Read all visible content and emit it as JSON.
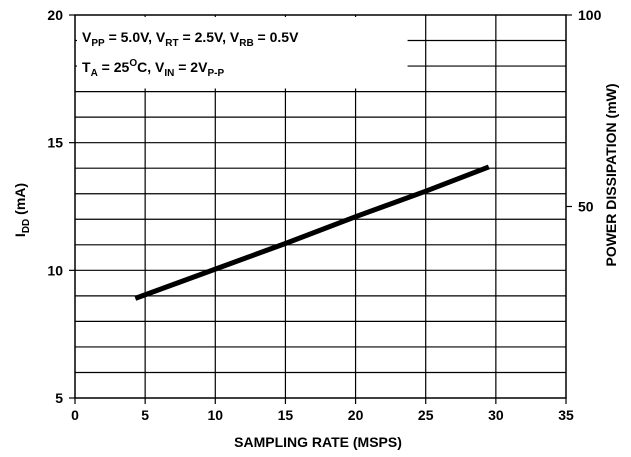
{
  "chart_data": {
    "type": "line",
    "xlabel": "SAMPLING RATE (MSPS)",
    "ylabel": {
      "main": "I",
      "sub": "DD",
      "rest": " (mA)"
    },
    "y2label": "POWER DISSIPATION (mW)",
    "xlim": [
      0,
      35
    ],
    "ylim": [
      5,
      20
    ],
    "y2lim": [
      0,
      100
    ],
    "x_ticks": [
      "0",
      "5",
      "10",
      "15",
      "20",
      "25",
      "30",
      "35"
    ],
    "y_ticks": [
      "5",
      "10",
      "15",
      "20"
    ],
    "y2_ticks": [
      "50",
      "100"
    ],
    "grid": true,
    "annotation": {
      "line1": [
        {
          "t": "V"
        },
        {
          "t": "PP",
          "sub": true
        },
        {
          "t": " = 5.0V, V"
        },
        {
          "t": "RT",
          "sub": true
        },
        {
          "t": " = 2.5V, V"
        },
        {
          "t": "RB",
          "sub": true
        },
        {
          "t": " = 0.5V"
        }
      ],
      "line2": [
        {
          "t": "T"
        },
        {
          "t": "A",
          "sub": true
        },
        {
          "t": " = 25"
        },
        {
          "t": "O",
          "sup": true
        },
        {
          "t": "C, V"
        },
        {
          "t": "IN",
          "sub": true
        },
        {
          "t": " = 2V"
        },
        {
          "t": "P-P",
          "sub": true
        }
      ]
    },
    "series": [
      {
        "x": [
          4.3,
          10,
          15,
          20,
          25,
          29.5
        ],
        "values": [
          8.9,
          10.05,
          11.05,
          12.1,
          13.1,
          14.05
        ]
      }
    ]
  }
}
